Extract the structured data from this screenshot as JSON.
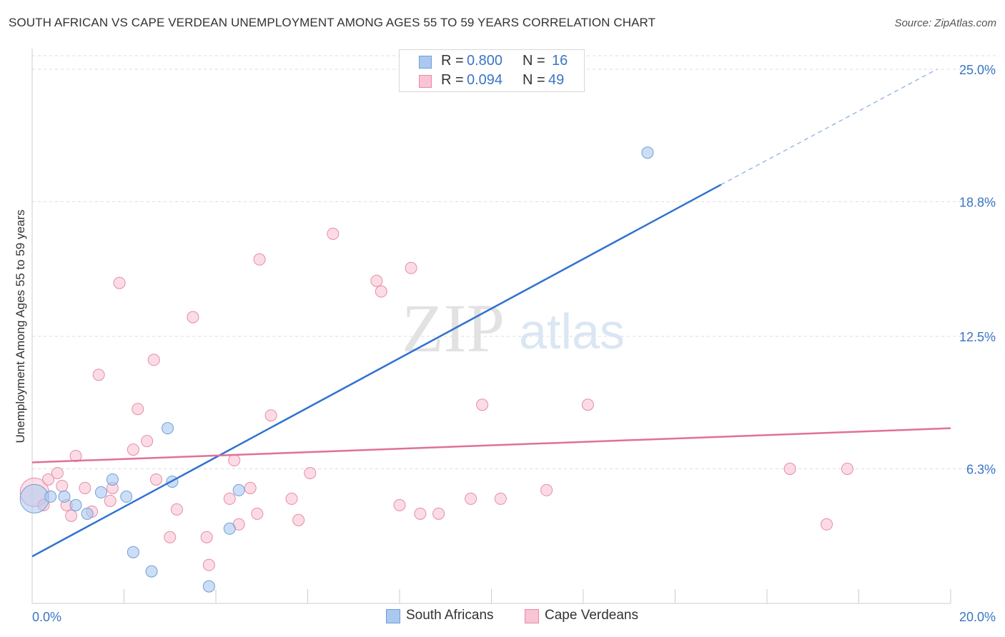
{
  "title": "SOUTH AFRICAN VS CAPE VERDEAN UNEMPLOYMENT AMONG AGES 55 TO 59 YEARS CORRELATION CHART",
  "source": "Source: ZipAtlas.com",
  "watermark": {
    "zip": "ZIP",
    "atlas": "atlas"
  },
  "legend": {
    "rows": [
      {
        "r_label": "R = ",
        "r_value": "0.800",
        "n_label": "N = ",
        "n_value": "16",
        "color": "#aac8f0",
        "border": "#6f9fd8"
      },
      {
        "r_label": "R = ",
        "r_value": "0.094",
        "n_label": "N = ",
        "n_value": "49",
        "color": "#f9c4d3",
        "border": "#e88aa6"
      }
    ]
  },
  "bottom_legend": {
    "south_africans": "South Africans",
    "cape_verdeans": "Cape Verdeans"
  },
  "chart_data": {
    "type": "scatter",
    "title": "SOUTH AFRICAN VS CAPE VERDEAN UNEMPLOYMENT AMONG AGES 55 TO 59 YEARS CORRELATION CHART",
    "xlabel": "",
    "ylabel": "Unemployment Among Ages 55 to 59 years",
    "xlim": [
      0,
      20
    ],
    "ylim": [
      0,
      25
    ],
    "x_tick_labels": [
      {
        "value": 0,
        "label": "0.0%"
      },
      {
        "value": 20,
        "label": "20.0%"
      }
    ],
    "y_tick_labels": [
      {
        "value": 6.3,
        "label": "6.3%"
      },
      {
        "value": 12.5,
        "label": "12.5%"
      },
      {
        "value": 18.8,
        "label": "18.8%"
      },
      {
        "value": 25.0,
        "label": "25.0%"
      }
    ],
    "x_minor_ticks": [
      0,
      2,
      4,
      6,
      8,
      10,
      12,
      14,
      16,
      18,
      20
    ],
    "grid": true,
    "legend_position": "top-center",
    "series": [
      {
        "name": "South Africans",
        "color": "#aac8f0",
        "stroke": "#6f9fd8",
        "line_color": "#2f72cf",
        "x": [
          0.05,
          0.4,
          0.7,
          0.95,
          1.2,
          1.5,
          1.75,
          2.05,
          2.2,
          2.6,
          2.95,
          3.05,
          3.85,
          4.3,
          4.5,
          13.4
        ],
        "y": [
          4.9,
          5.0,
          5.0,
          4.6,
          4.2,
          5.2,
          5.8,
          5.0,
          2.4,
          1.5,
          8.2,
          5.7,
          0.8,
          3.5,
          5.3,
          21.1
        ],
        "trend": {
          "x": [
            0,
            15.0
          ],
          "y": [
            2.2,
            19.6
          ],
          "dashed_to": {
            "x": 19.7,
            "y": 25.0
          }
        }
      },
      {
        "name": "Cape Verdeans",
        "color": "#f9c4d3",
        "stroke": "#e88aa6",
        "line_color": "#e0709a",
        "x": [
          0.05,
          0.25,
          0.35,
          0.55,
          0.65,
          0.85,
          0.95,
          1.15,
          1.3,
          1.45,
          1.7,
          1.75,
          1.9,
          2.2,
          2.3,
          2.5,
          2.65,
          2.7,
          3.0,
          3.15,
          3.5,
          3.8,
          3.85,
          4.3,
          4.4,
          4.5,
          4.75,
          4.9,
          4.95,
          5.2,
          5.65,
          5.8,
          6.05,
          6.55,
          7.5,
          7.6,
          8.0,
          8.25,
          8.45,
          8.85,
          9.55,
          9.8,
          10.2,
          11.2,
          12.1,
          16.5,
          17.3,
          17.75,
          0.75
        ],
        "y": [
          5.2,
          4.6,
          5.8,
          6.1,
          5.5,
          4.1,
          6.9,
          5.4,
          4.3,
          10.7,
          4.8,
          5.4,
          15.0,
          7.2,
          9.1,
          7.6,
          11.4,
          5.8,
          3.1,
          4.4,
          13.4,
          3.1,
          1.8,
          4.9,
          6.7,
          3.7,
          5.4,
          4.2,
          16.1,
          8.8,
          4.9,
          3.9,
          6.1,
          17.3,
          15.1,
          14.6,
          4.6,
          15.7,
          4.2,
          4.2,
          4.9,
          9.3,
          4.9,
          5.3,
          9.3,
          6.3,
          3.7,
          6.3,
          4.6
        ],
        "trend": {
          "x": [
            0,
            20
          ],
          "y": [
            6.6,
            8.2
          ]
        }
      }
    ]
  }
}
